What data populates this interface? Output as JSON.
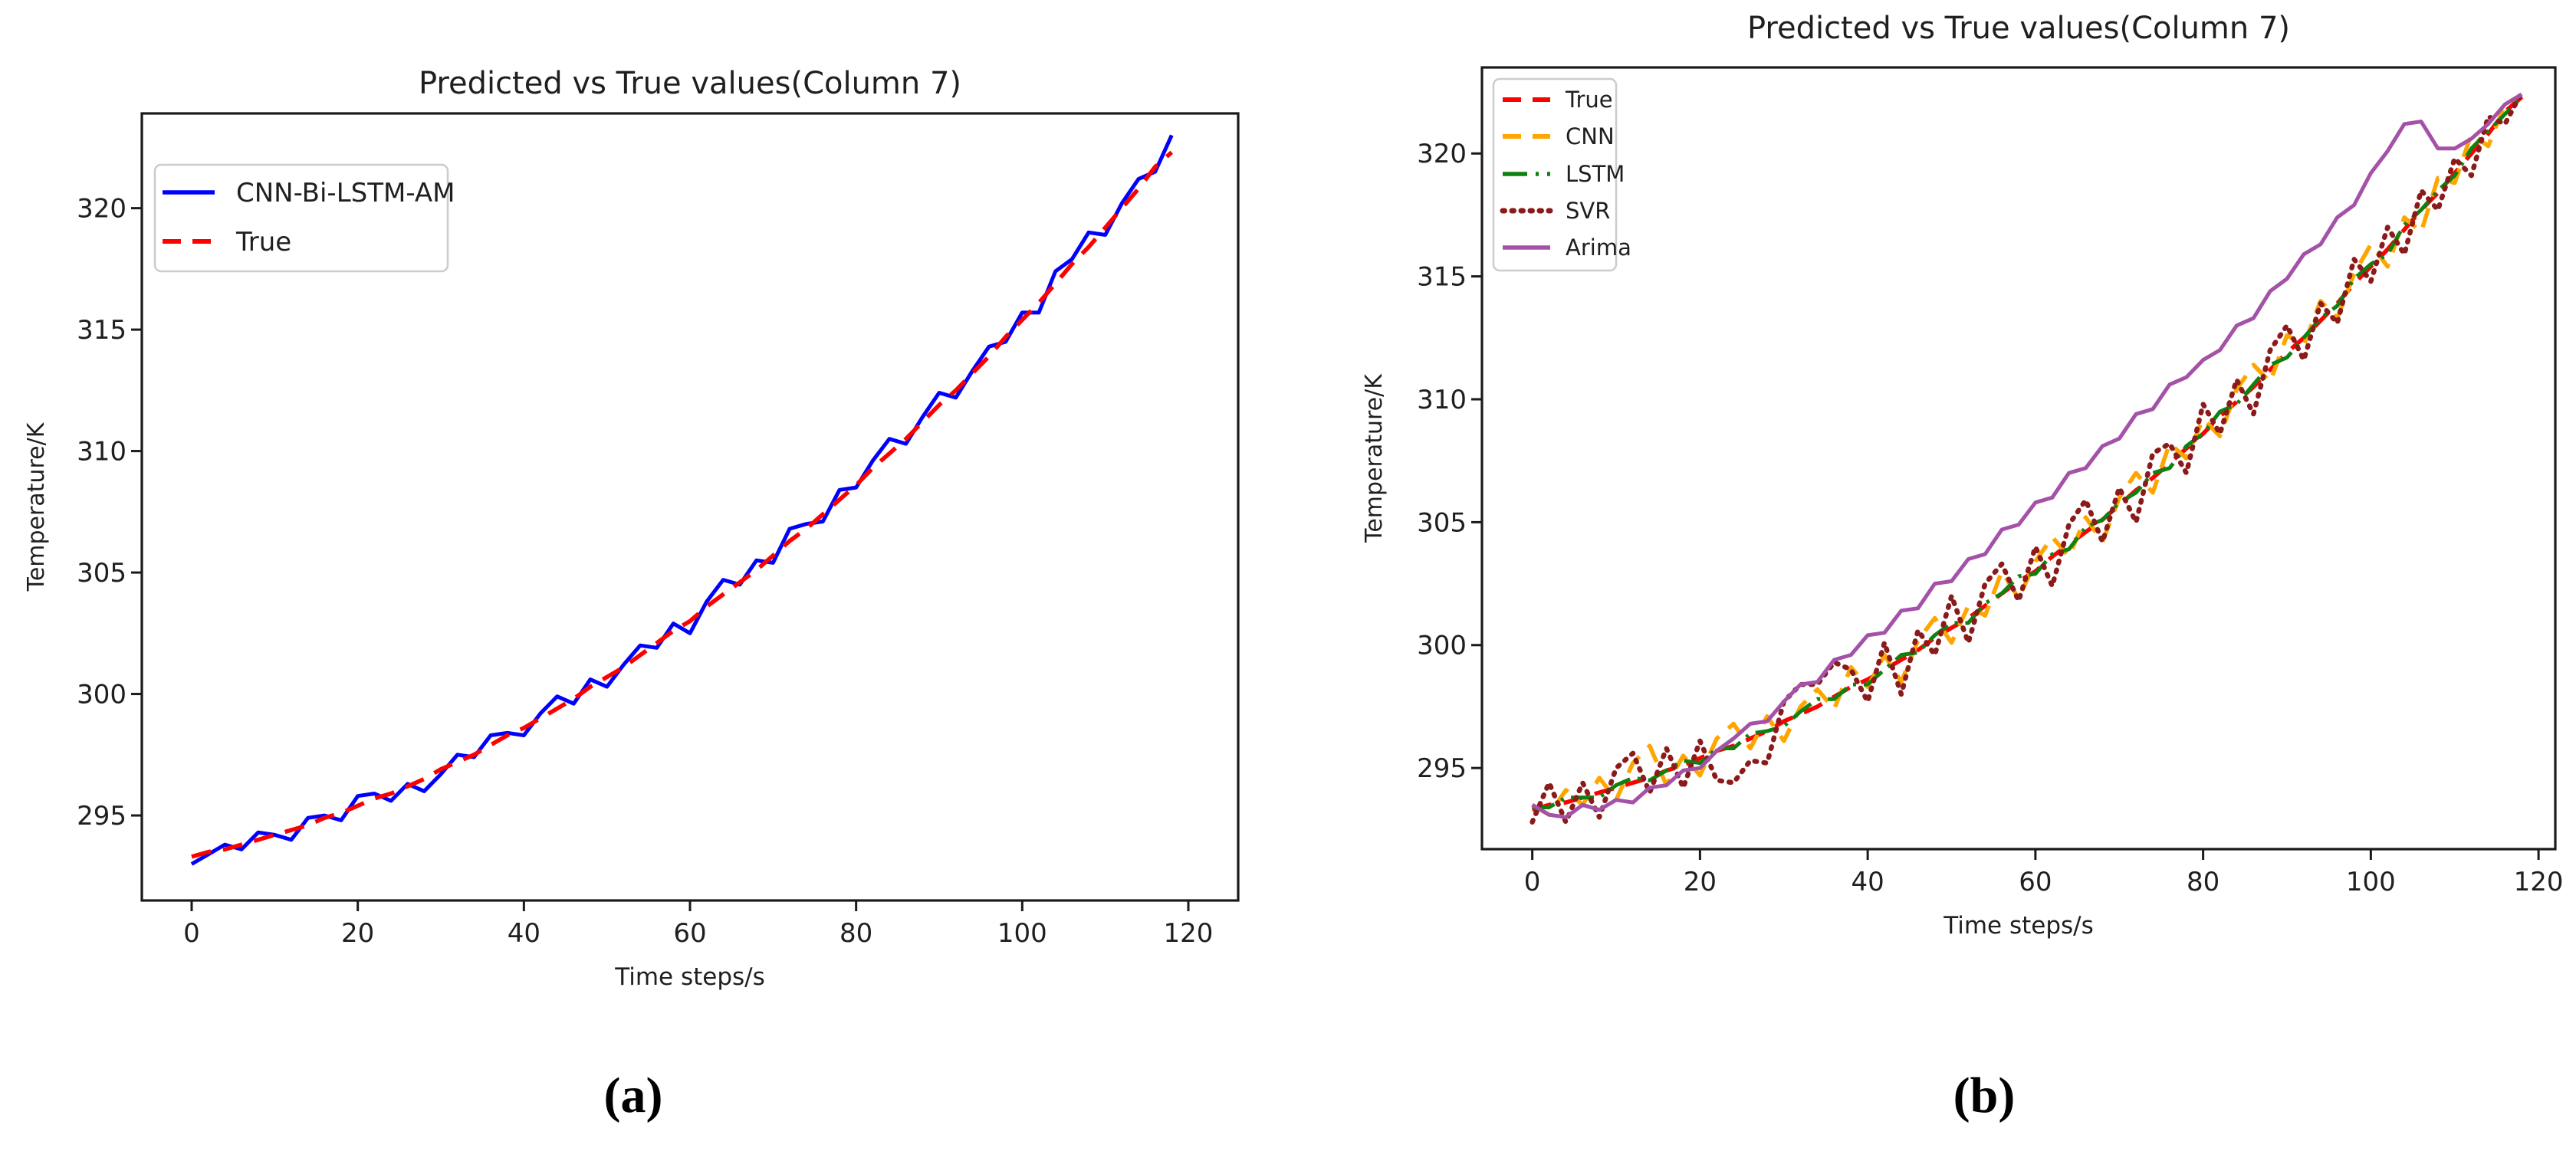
{
  "figure": {
    "background": "#ffffff",
    "captions": {
      "a": "(a)",
      "b": "(b)"
    }
  },
  "colors": {
    "true": "#ff0000",
    "cnn_bi_lstm_am": "#0000ff",
    "cnn": "#ffa500",
    "lstm": "#0e8210",
    "svr": "#8b1a1a",
    "arima": "#a352a8",
    "axis": "#1a1a1a",
    "legend_border": "#cccccc"
  },
  "chart_data": [
    {
      "type": "line",
      "title": "Predicted vs True values(Column 7)",
      "xlabel": "Time steps/s",
      "ylabel": "Temperature/K",
      "caption": "(a)",
      "xlim": [
        -6,
        126
      ],
      "ylim": [
        291.5,
        323.9
      ],
      "xticks": [
        0,
        20,
        40,
        60,
        80,
        100,
        120
      ],
      "yticks": [
        295,
        300,
        305,
        310,
        315,
        320
      ],
      "grid": false,
      "legend_position": "top-left",
      "x": [
        0,
        2,
        4,
        6,
        8,
        10,
        12,
        14,
        16,
        18,
        20,
        22,
        24,
        26,
        28,
        30,
        32,
        34,
        36,
        38,
        40,
        42,
        44,
        46,
        48,
        50,
        52,
        54,
        56,
        58,
        60,
        62,
        64,
        66,
        68,
        70,
        72,
        74,
        76,
        78,
        80,
        82,
        84,
        86,
        88,
        90,
        92,
        94,
        96,
        98,
        100,
        102,
        104,
        106,
        108,
        110,
        112,
        114,
        116,
        118
      ],
      "series": [
        {
          "name": "CNN-Bi-LSTM-AM",
          "color": "#0000ff",
          "style": "solid",
          "values": [
            293.0,
            293.4,
            293.8,
            293.6,
            294.3,
            294.2,
            294.0,
            294.9,
            295.0,
            294.8,
            295.8,
            295.9,
            295.6,
            296.3,
            296.0,
            296.7,
            297.5,
            297.4,
            298.3,
            298.4,
            298.3,
            299.2,
            299.9,
            299.6,
            300.6,
            300.3,
            301.2,
            302.0,
            301.9,
            302.9,
            302.5,
            303.8,
            304.7,
            304.5,
            305.5,
            305.4,
            306.8,
            307.0,
            307.1,
            308.4,
            308.5,
            309.6,
            310.5,
            310.3,
            311.4,
            312.4,
            312.2,
            313.3,
            314.3,
            314.5,
            315.7,
            315.7,
            317.4,
            317.9,
            319.0,
            318.9,
            320.2,
            321.2,
            321.5,
            323.0
          ]
        },
        {
          "name": "True",
          "color": "#ff0000",
          "style": "dashed",
          "values": [
            293.3,
            293.5,
            293.6,
            293.8,
            294.0,
            294.2,
            294.4,
            294.6,
            294.9,
            295.1,
            295.4,
            295.7,
            295.9,
            296.2,
            296.5,
            296.9,
            297.2,
            297.5,
            297.9,
            298.3,
            298.6,
            299.0,
            299.4,
            299.8,
            300.3,
            300.7,
            301.1,
            301.6,
            302.1,
            302.6,
            303.0,
            303.6,
            304.1,
            304.6,
            305.1,
            305.7,
            306.3,
            306.8,
            307.4,
            308.0,
            308.6,
            309.3,
            309.9,
            310.5,
            311.2,
            311.9,
            312.5,
            313.2,
            313.9,
            314.7,
            315.4,
            316.1,
            316.9,
            317.7,
            318.4,
            319.2,
            320.0,
            320.8,
            321.7,
            322.3
          ]
        }
      ]
    },
    {
      "type": "line",
      "title": "Predicted vs True values(Column 7)",
      "xlabel": "Time steps/s",
      "ylabel": "Temperature/K",
      "caption": "(b)",
      "xlim": [
        -6,
        122
      ],
      "ylim": [
        291.7,
        323.5
      ],
      "xticks": [
        0,
        20,
        40,
        60,
        80,
        100,
        120
      ],
      "yticks": [
        295,
        300,
        305,
        310,
        315,
        320
      ],
      "grid": false,
      "legend_position": "top-left",
      "x": [
        0,
        2,
        4,
        6,
        8,
        10,
        12,
        14,
        16,
        18,
        20,
        22,
        24,
        26,
        28,
        30,
        32,
        34,
        36,
        38,
        40,
        42,
        44,
        46,
        48,
        50,
        52,
        54,
        56,
        58,
        60,
        62,
        64,
        66,
        68,
        70,
        72,
        74,
        76,
        78,
        80,
        82,
        84,
        86,
        88,
        90,
        92,
        94,
        96,
        98,
        100,
        102,
        104,
        106,
        108,
        110,
        112,
        114,
        116,
        118
      ],
      "series": [
        {
          "name": "True",
          "color": "#ff0000",
          "style": "dashed",
          "values": [
            293.3,
            293.5,
            293.6,
            293.8,
            294.0,
            294.2,
            294.4,
            294.6,
            294.9,
            295.1,
            295.4,
            295.7,
            295.9,
            296.2,
            296.5,
            296.9,
            297.2,
            297.5,
            297.9,
            298.3,
            298.6,
            299.0,
            299.4,
            299.8,
            300.3,
            300.7,
            301.1,
            301.6,
            302.1,
            302.6,
            303.0,
            303.6,
            304.1,
            304.6,
            305.1,
            305.7,
            306.3,
            306.8,
            307.4,
            308.0,
            308.6,
            309.3,
            309.9,
            310.5,
            311.2,
            311.9,
            312.5,
            313.2,
            313.9,
            314.7,
            315.4,
            316.1,
            316.9,
            317.7,
            318.4,
            319.2,
            320.0,
            320.8,
            321.7,
            322.3
          ]
        },
        {
          "name": "CNN",
          "color": "#ffa500",
          "style": "dashed",
          "values": [
            293.5,
            293.1,
            294.1,
            293.5,
            294.6,
            293.7,
            295.2,
            295.9,
            294.3,
            295.5,
            294.7,
            296.2,
            296.8,
            295.8,
            297.1,
            296.1,
            297.5,
            298.2,
            297.4,
            299.1,
            298.3,
            299.6,
            298.5,
            300.2,
            301.1,
            300.1,
            301.6,
            301.2,
            303.0,
            301.9,
            303.4,
            304.4,
            303.6,
            305.2,
            304.2,
            306.0,
            307.0,
            306.2,
            308.2,
            307.6,
            309.2,
            308.5,
            310.4,
            311.4,
            310.7,
            312.6,
            312.2,
            314.0,
            313.3,
            315.1,
            316.3,
            315.4,
            317.4,
            316.8,
            319.0,
            318.8,
            320.8,
            320.3,
            322.0,
            322.4
          ]
        },
        {
          "name": "LSTM",
          "color": "#0e8210",
          "style": "dashdot",
          "values": [
            293.4,
            293.4,
            293.8,
            293.8,
            293.8,
            294.3,
            294.6,
            294.5,
            294.9,
            295.3,
            295.2,
            295.8,
            295.8,
            296.4,
            296.5,
            296.7,
            297.3,
            297.8,
            297.8,
            298.4,
            298.4,
            299.0,
            299.6,
            299.7,
            300.4,
            300.9,
            300.9,
            301.7,
            302.1,
            302.8,
            302.9,
            303.7,
            303.9,
            304.8,
            305.1,
            305.8,
            306.2,
            307.0,
            307.2,
            308.1,
            308.6,
            309.5,
            309.8,
            310.6,
            311.4,
            311.7,
            312.5,
            313.3,
            313.8,
            314.9,
            315.5,
            315.9,
            317.1,
            317.7,
            318.5,
            319.1,
            320.2,
            320.9,
            321.6,
            322.3
          ]
        },
        {
          "name": "SVR",
          "color": "#8b1a1a",
          "style": "dotted",
          "values": [
            292.8,
            294.4,
            292.8,
            294.4,
            293.0,
            295.0,
            295.6,
            294.0,
            295.8,
            294.2,
            296.1,
            294.5,
            294.4,
            295.3,
            295.2,
            297.7,
            298.4,
            298.4,
            299.3,
            299.0,
            297.7,
            300.1,
            298.0,
            300.6,
            299.6,
            302.0,
            300.1,
            302.5,
            303.3,
            301.8,
            304.0,
            302.4,
            304.9,
            305.9,
            304.2,
            306.4,
            305.0,
            307.8,
            308.2,
            307.0,
            309.8,
            308.6,
            310.8,
            309.4,
            312.0,
            313.0,
            311.6,
            313.9,
            313.1,
            315.7,
            314.8,
            317.0,
            315.9,
            318.5,
            317.7,
            319.8,
            319.1,
            321.5,
            321.2,
            322.5
          ]
        },
        {
          "name": "Arima",
          "color": "#a352a8",
          "style": "solid",
          "values": [
            293.5,
            293.1,
            293.0,
            293.5,
            293.3,
            293.7,
            293.6,
            294.2,
            294.3,
            294.9,
            295.0,
            295.7,
            296.2,
            296.8,
            296.9,
            297.7,
            298.4,
            298.5,
            299.4,
            299.6,
            300.4,
            300.5,
            301.4,
            301.5,
            302.5,
            302.6,
            303.5,
            303.7,
            304.7,
            304.9,
            305.8,
            306.0,
            307.0,
            307.2,
            308.1,
            308.4,
            309.4,
            309.6,
            310.6,
            310.9,
            311.6,
            312.0,
            313.0,
            313.3,
            314.4,
            314.9,
            315.9,
            316.3,
            317.4,
            317.9,
            319.2,
            320.1,
            321.2,
            321.3,
            320.2,
            320.2,
            320.6,
            321.2,
            322.0,
            322.4
          ]
        }
      ]
    }
  ]
}
